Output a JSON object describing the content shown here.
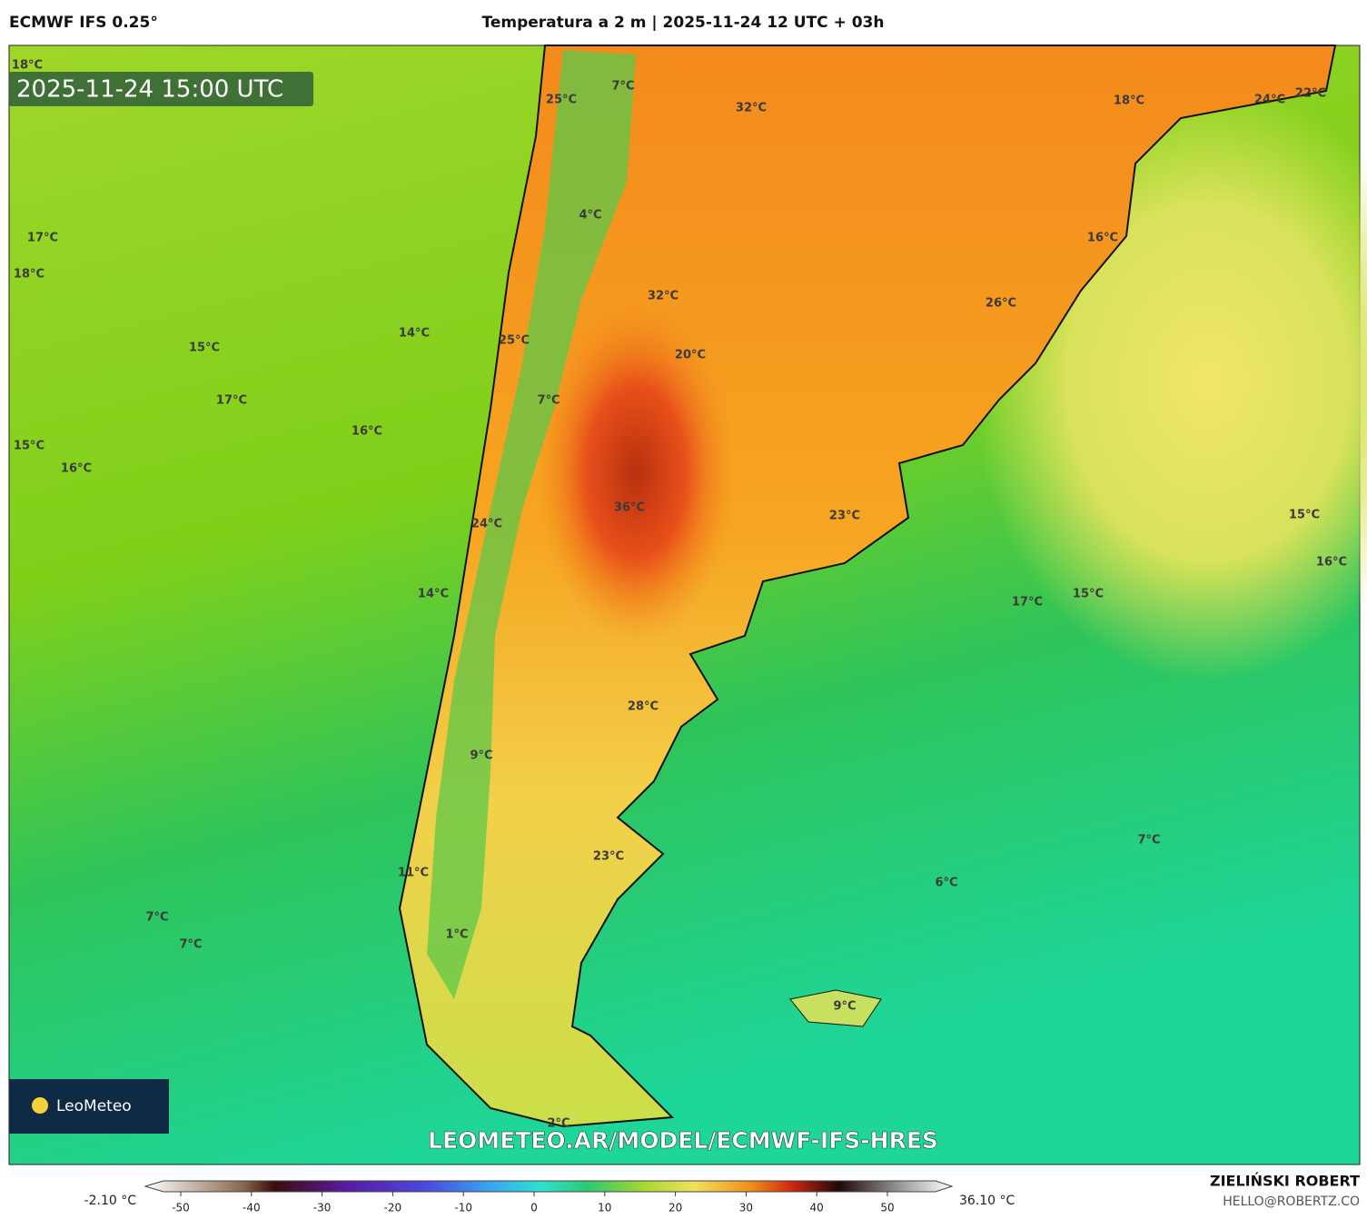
{
  "header": {
    "model": "ECMWF IFS 0.25°",
    "title": "Temperatura a 2 m | 2025-11-24 12 UTC + 03h"
  },
  "map": {
    "timestamp": "2025-11-24 15:00 UTC",
    "url": "LEOMETEO.AR/MODEL/ECMWF-IFS-HRES",
    "logo": "LeoMeteo",
    "labels": [
      "18°C",
      "25°C",
      "7°C",
      "32°C",
      "18°C",
      "24°C",
      "22°C",
      "17°C",
      "18°C",
      "4°C",
      "16°C",
      "32°C",
      "26°C",
      "14°C",
      "15°C",
      "25°C",
      "20°C",
      "17°C",
      "7°C",
      "16°C",
      "15°C",
      "16°C",
      "36°C",
      "23°C",
      "24°C",
      "15°C",
      "16°C",
      "14°C",
      "17°C",
      "15°C",
      "28°C",
      "9°C",
      "7°C",
      "23°C",
      "6°C",
      "11°C",
      "7°C",
      "7°C",
      "1°C",
      "9°C",
      "2°C"
    ]
  },
  "colorbar": {
    "min_label": "-2.10 °C",
    "max_label": "36.10 °C",
    "ticks": [
      -50,
      -40,
      -30,
      -20,
      -10,
      0,
      10,
      20,
      30,
      40,
      50
    ]
  },
  "footer": {
    "author": "ZIELIŃSKI ROBERT",
    "email": "HELLO@ROBERTZ.CO"
  }
}
